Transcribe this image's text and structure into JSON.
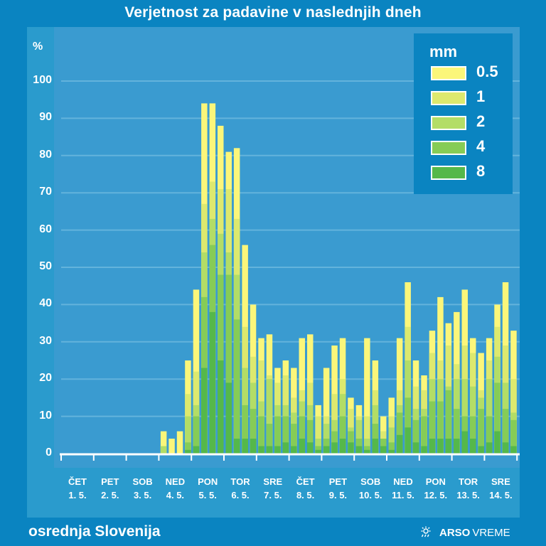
{
  "title": "Verjetnost za padavine v naslednjih dneh",
  "region": "osrednja Slovenija",
  "brand": {
    "icon": "weather-sun-rain-icon",
    "name_bold": "ARSO",
    "name_light": "VREME"
  },
  "colors": {
    "background": "#0a84c1",
    "plot_background": "#3a9bd0",
    "grid": "#63b3dc",
    "axis": "#ffffff",
    "levels": [
      "#fbf67a",
      "#dde96e",
      "#b3dd66",
      "#86cc56",
      "#55b84a"
    ]
  },
  "chart_data": {
    "type": "bar",
    "stacked": true,
    "title": "Verjetnost za padavine v naslednjih dneh",
    "ylabel": "%",
    "xlabel": "",
    "ylim": [
      0,
      100
    ],
    "yticks": [
      0,
      10,
      20,
      30,
      40,
      50,
      60,
      70,
      80,
      90,
      100
    ],
    "grid": true,
    "legend": {
      "title": "mm",
      "position": "top-right",
      "entries": [
        "0.5",
        "1",
        "2",
        "4",
        "8"
      ]
    },
    "bars_per_day": 4,
    "days": [
      {
        "dow": "ČET",
        "date": "1. 5."
      },
      {
        "dow": "PET",
        "date": "2. 5."
      },
      {
        "dow": "SOB",
        "date": "3. 5."
      },
      {
        "dow": "NED",
        "date": "4. 5."
      },
      {
        "dow": "PON",
        "date": "5. 5."
      },
      {
        "dow": "TOR",
        "date": "6. 5."
      },
      {
        "dow": "SRE",
        "date": "7. 5."
      },
      {
        "dow": "ČET",
        "date": "8. 5."
      },
      {
        "dow": "PET",
        "date": "9. 5."
      },
      {
        "dow": "SOB",
        "date": "10. 5."
      },
      {
        "dow": "NED",
        "date": "11. 5."
      },
      {
        "dow": "PON",
        "date": "12. 5."
      },
      {
        "dow": "TOR",
        "date": "13. 5."
      },
      {
        "dow": "SRE",
        "date": "14. 5."
      }
    ],
    "series": [
      {
        "name": "0.5",
        "values": [
          0,
          0,
          0,
          0,
          0,
          0,
          0,
          0,
          0,
          0,
          0,
          0,
          6,
          4,
          6,
          25,
          44,
          94,
          94,
          88,
          81,
          82,
          56,
          40,
          31,
          32,
          23,
          25,
          23,
          31,
          32,
          13,
          23,
          29,
          31,
          15,
          13,
          31,
          25,
          10,
          15,
          31,
          46,
          25,
          21,
          33,
          42,
          35,
          38,
          44,
          31,
          27,
          31,
          40,
          46,
          33
        ]
      },
      {
        "name": "1",
        "values": [
          0,
          0,
          0,
          0,
          0,
          0,
          0,
          0,
          0,
          0,
          0,
          0,
          2,
          0,
          0,
          16,
          22,
          67,
          73,
          71,
          71,
          63,
          34,
          26,
          25,
          21,
          19,
          21,
          15,
          17,
          19,
          10,
          10,
          16,
          20,
          12,
          10,
          10,
          17,
          6,
          10,
          17,
          34,
          18,
          17,
          27,
          25,
          29,
          24,
          29,
          27,
          17,
          25,
          34,
          29,
          20
        ]
      },
      {
        "name": "2",
        "values": [
          0,
          0,
          0,
          0,
          0,
          0,
          0,
          0,
          0,
          0,
          0,
          0,
          2,
          0,
          0,
          10,
          13,
          54,
          63,
          59,
          54,
          48,
          23,
          19,
          14,
          20,
          13,
          13,
          11,
          14,
          13,
          4,
          8,
          9,
          16,
          7,
          9,
          4,
          13,
          4,
          7,
          13,
          25,
          12,
          12,
          20,
          20,
          18,
          20,
          20,
          18,
          15,
          20,
          26,
          19,
          11
        ]
      },
      {
        "name": "4",
        "values": [
          0,
          0,
          0,
          0,
          0,
          0,
          0,
          0,
          0,
          0,
          0,
          0,
          0,
          0,
          0,
          3,
          10,
          42,
          56,
          48,
          48,
          36,
          13,
          12,
          10,
          8,
          10,
          10,
          8,
          10,
          9,
          2,
          4,
          6,
          10,
          6,
          4,
          2,
          8,
          4,
          3,
          11,
          15,
          9,
          10,
          14,
          14,
          17,
          12,
          10,
          10,
          12,
          10,
          19,
          12,
          9
        ]
      },
      {
        "name": "8",
        "values": [
          0,
          0,
          0,
          0,
          0,
          0,
          0,
          0,
          0,
          0,
          0,
          0,
          0,
          0,
          0,
          1,
          2,
          23,
          38,
          25,
          19,
          4,
          4,
          4,
          2,
          2,
          2,
          3,
          2,
          4,
          3,
          1,
          2,
          3,
          4,
          3,
          2,
          1,
          4,
          2,
          1,
          5,
          7,
          3,
          2,
          4,
          4,
          4,
          4,
          6,
          4,
          2,
          3,
          6,
          3,
          2
        ]
      }
    ]
  }
}
